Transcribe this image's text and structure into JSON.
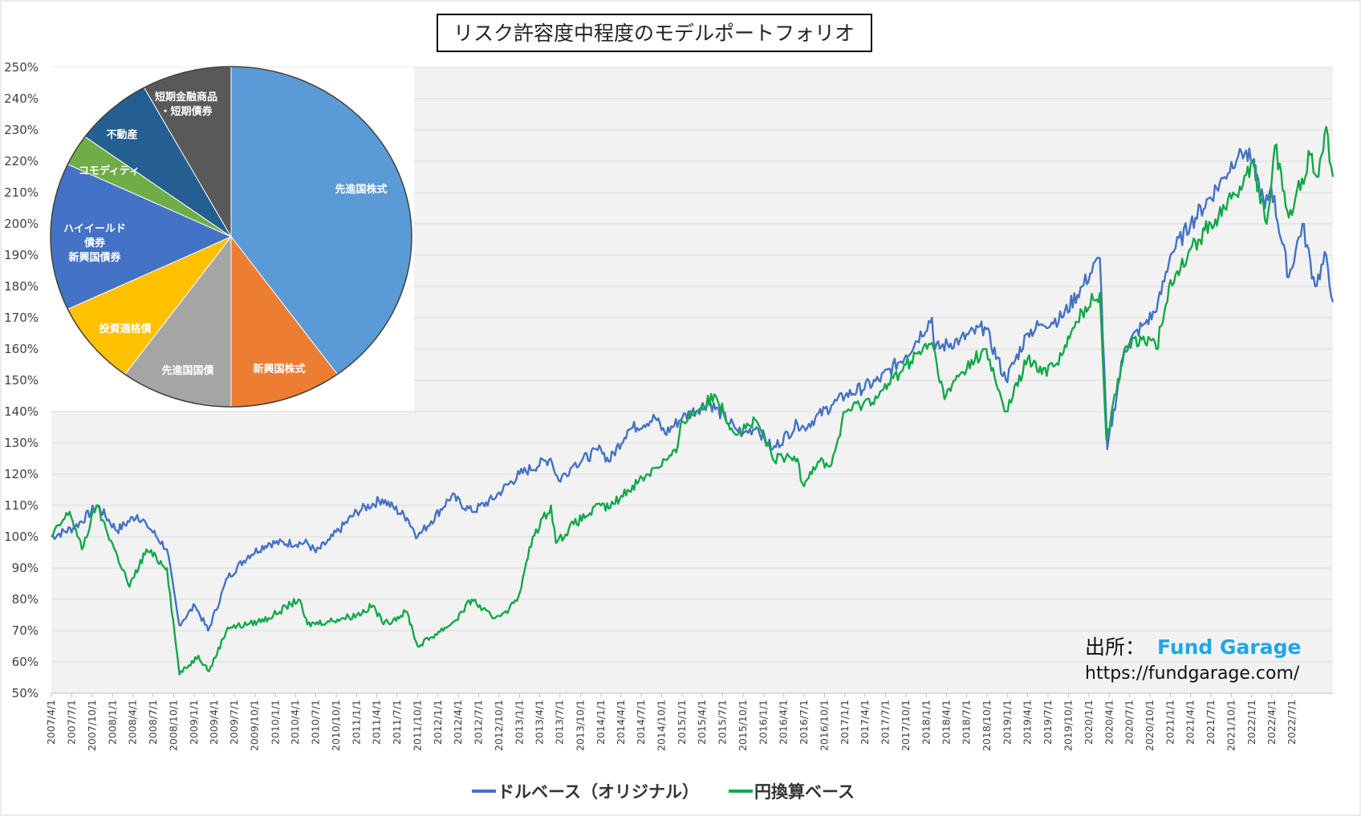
{
  "chart_data": [
    {
      "type": "line",
      "title": "リスク許容度中程度のモデルポートフォリオ",
      "ylim": [
        50,
        250
      ],
      "y_tick_labels": [
        "50%",
        "60%",
        "70%",
        "80%",
        "90%",
        "100%",
        "110%",
        "120%",
        "130%",
        "140%",
        "150%",
        "160%",
        "170%",
        "180%",
        "190%",
        "200%",
        "210%",
        "220%",
        "230%",
        "240%",
        "250%"
      ],
      "x_range": [
        "2007-04-01",
        "2022-12-31"
      ],
      "x_tick_labels": [
        "2007/4/1",
        "2007/7/1",
        "2007/10/1",
        "2008/1/1",
        "2008/4/1",
        "2008/7/1",
        "2008/10/1",
        "2009/1/1",
        "2009/4/1",
        "2009/7/1",
        "2009/10/1",
        "2010/1/1",
        "2010/4/1",
        "2010/7/1",
        "2010/10/1",
        "2011/1/1",
        "2011/4/1",
        "2011/7/1",
        "2011/10/1",
        "2012/1/1",
        "2012/4/1",
        "2012/7/1",
        "2012/10/1",
        "2013/1/1",
        "2013/4/1",
        "2013/7/1",
        "2013/10/1",
        "2014/1/1",
        "2014/4/1",
        "2014/7/1",
        "2014/10/1",
        "2015/1/1",
        "2015/4/1",
        "2015/7/1",
        "2015/10/1",
        "2016/1/1",
        "2016/4/1",
        "2016/7/1",
        "2016/10/1",
        "2017/1/1",
        "2017/4/1",
        "2017/7/1",
        "2017/10/1",
        "2018/1/1",
        "2018/4/1",
        "2018/7/1",
        "2018/10/1",
        "2019/1/1",
        "2019/4/1",
        "2019/7/1",
        "2019/10/1",
        "2020/1/1",
        "2020/4/1",
        "2020/7/1",
        "2020/10/1",
        "2021/1/1",
        "2021/4/1",
        "2021/7/1",
        "2021/10/1",
        "2022/1/1",
        "2022/4/1",
        "2022/7/1"
      ],
      "grid": true,
      "legend_position": "bottom-center",
      "series": [
        {
          "name": "ドルベース（オリジナル）",
          "color": "#4472c4",
          "x": [
            "2007-04-01",
            "2007-07-15",
            "2007-10-25",
            "2008-01-20",
            "2008-04-20",
            "2008-06-01",
            "2008-09-01",
            "2008-10-25",
            "2009-01-05",
            "2009-03-05",
            "2009-06-01",
            "2009-09-01",
            "2009-12-01",
            "2010-05-25",
            "2010-07-01",
            "2010-09-01",
            "2011-01-01",
            "2011-04-25",
            "2011-08-15",
            "2011-10-01",
            "2011-12-01",
            "2012-03-01",
            "2012-06-01",
            "2012-09-01",
            "2012-11-15",
            "2013-01-01",
            "2013-05-20",
            "2013-06-25",
            "2013-09-01",
            "2014-01-01",
            "2014-02-05",
            "2014-05-01",
            "2014-09-01",
            "2014-10-15",
            "2015-01-01",
            "2015-05-01",
            "2015-08-24",
            "2015-10-01",
            "2015-12-01",
            "2016-02-11",
            "2016-06-01",
            "2016-07-01",
            "2016-11-01",
            "2017-01-01",
            "2017-06-01",
            "2017-10-01",
            "2018-01-26",
            "2018-02-09",
            "2018-06-01",
            "2018-09-20",
            "2018-12-24",
            "2019-04-01",
            "2019-06-03",
            "2019-09-01",
            "2019-12-01",
            "2020-02-19",
            "2020-03-23",
            "2020-06-08",
            "2020-09-02",
            "2020-10-30",
            "2021-01-01",
            "2021-04-01",
            "2021-09-01",
            "2021-11-08",
            "2022-01-04",
            "2022-03-01",
            "2022-03-29",
            "2022-06-16",
            "2022-08-16",
            "2022-10-12",
            "2022-12-01",
            "2022-12-31"
          ],
          "y": [
            100,
            103,
            110,
            102,
            107,
            104,
            96,
            72,
            78,
            70,
            87,
            94,
            98,
            98,
            95,
            99,
            108,
            112,
            106,
            100,
            105,
            113,
            108,
            112,
            117,
            120,
            125,
            118,
            123,
            128,
            124,
            134,
            138,
            133,
            138,
            143,
            135,
            133,
            135,
            128,
            136,
            135,
            142,
            145,
            150,
            158,
            170,
            160,
            163,
            167,
            150,
            165,
            168,
            170,
            180,
            189,
            128,
            160,
            168,
            172,
            190,
            200,
            215,
            224,
            220,
            205,
            212,
            183,
            200,
            180,
            190,
            175
          ]
        },
        {
          "name": "円換算ベース",
          "color": "#13a84a",
          "x": [
            "2007-04-01",
            "2007-06-22",
            "2007-08-16",
            "2007-10-20",
            "2008-01-22",
            "2008-03-17",
            "2008-06-01",
            "2008-09-01",
            "2008-10-27",
            "2009-01-20",
            "2009-03-09",
            "2009-06-01",
            "2009-09-01",
            "2009-12-01",
            "2010-04-15",
            "2010-05-25",
            "2010-08-24",
            "2011-01-01",
            "2011-03-15",
            "2011-05-01",
            "2011-08-15",
            "2011-10-01",
            "2012-03-15",
            "2012-06-01",
            "2012-09-01",
            "2012-11-15",
            "2013-01-01",
            "2013-03-01",
            "2013-05-22",
            "2013-06-13",
            "2013-09-01",
            "2014-01-01",
            "2014-02-05",
            "2014-05-01",
            "2014-09-01",
            "2014-12-05",
            "2015-01-01",
            "2015-06-01",
            "2015-08-24",
            "2015-12-01",
            "2016-02-11",
            "2016-06-01",
            "2016-06-24",
            "2016-09-01",
            "2016-11-01",
            "2017-01-01",
            "2017-06-01",
            "2017-10-01",
            "2018-01-26",
            "2018-03-23",
            "2018-06-01",
            "2018-09-20",
            "2018-12-25",
            "2019-04-01",
            "2019-06-03",
            "2019-09-01",
            "2019-12-01",
            "2020-02-19",
            "2020-03-19",
            "2020-06-08",
            "2020-09-02",
            "2020-10-30",
            "2021-01-01",
            "2021-04-01",
            "2021-07-01",
            "2021-09-01",
            "2021-11-08",
            "2022-01-04",
            "2022-03-08",
            "2022-04-15",
            "2022-06-16",
            "2022-09-20",
            "2022-10-20",
            "2022-12-01",
            "2022-12-31"
          ],
          "y": [
            100,
            108,
            96,
            110,
            94,
            84,
            96,
            90,
            56,
            62,
            57,
            71,
            72,
            74,
            80,
            72,
            73,
            75,
            78,
            72,
            76,
            65,
            73,
            80,
            74,
            77,
            82,
            100,
            110,
            98,
            104,
            110,
            109,
            115,
            122,
            127,
            137,
            145,
            133,
            137,
            125,
            125,
            117,
            124,
            123,
            140,
            145,
            155,
            162,
            144,
            152,
            160,
            140,
            157,
            152,
            158,
            172,
            178,
            131,
            160,
            164,
            160,
            182,
            192,
            200,
            205,
            212,
            220,
            200,
            225,
            202,
            222,
            215,
            231,
            215
          ]
        }
      ]
    },
    {
      "type": "pie",
      "slices": [
        {
          "label": "先進国株式",
          "value": 40,
          "color": "#5b9bd5"
        },
        {
          "label": "新興国株式",
          "value": 10,
          "color": "#ed7d31"
        },
        {
          "label": "先進国国債",
          "value": 10,
          "color": "#a5a5a5"
        },
        {
          "label": "投資適格債",
          "value": 8,
          "color": "#ffc000"
        },
        {
          "label": "ハイイールド債券新興国債券",
          "value": 14,
          "color": "#4472c4"
        },
        {
          "label": "コモディティ",
          "value": 3,
          "color": "#70ad47"
        },
        {
          "label": "不動産",
          "value": 7,
          "color": "#255e91"
        },
        {
          "label": "短期金融商品・短期債券",
          "value": 8,
          "color": "#595959"
        }
      ]
    }
  ],
  "source": {
    "label": "出所：",
    "brand": "Fund Garage",
    "url": "https://fundgarage.com/"
  }
}
